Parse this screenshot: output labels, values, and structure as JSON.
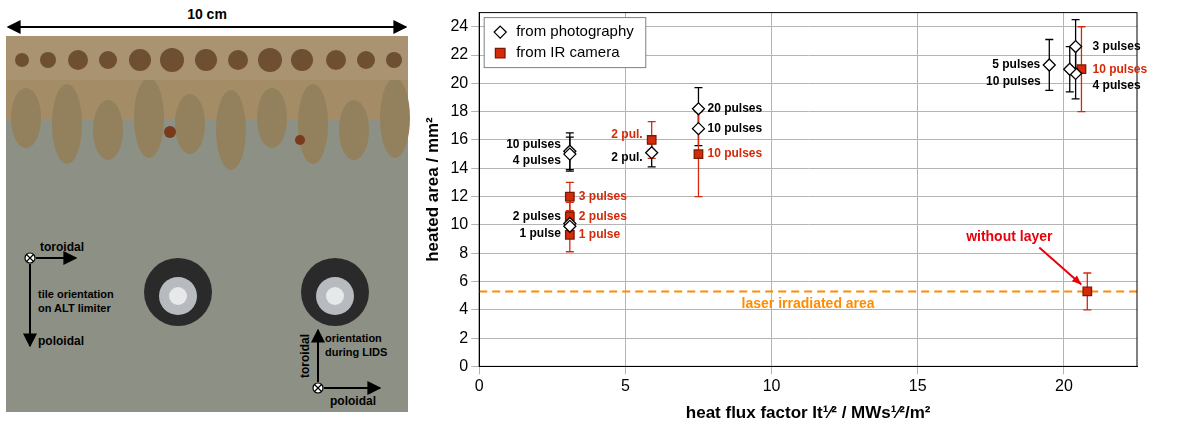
{
  "photo": {
    "scale_bar": "10 cm",
    "tile_axes": {
      "label": "tile orientation on ALT limiter",
      "horizontal": "toroidal",
      "vertical": "poloidal"
    },
    "lids_axes": {
      "label": "orientation during LIDS",
      "vertical": "toroidal",
      "horizontal": "poloidal"
    }
  },
  "chart_data": {
    "type": "scatter",
    "xlabel": "heat flux factor It¹⁄² / MWs¹⁄²/m²",
    "ylabel": "heated area / mm²",
    "xlim": [
      0,
      22.5
    ],
    "xticks": [
      0,
      5,
      10,
      15,
      20
    ],
    "ylim": [
      0,
      25
    ],
    "yticks": [
      0,
      2,
      4,
      6,
      8,
      10,
      12,
      14,
      16,
      18,
      20,
      22,
      24
    ],
    "grid": true,
    "legend": "upper left",
    "series": [
      {
        "name": "from photography",
        "color": "#000000",
        "marker": "open_diamond",
        "x": [
          3.1,
          3.1,
          3.1,
          3.1,
          5.9,
          7.5,
          7.5,
          19.5,
          20.4,
          20.4,
          20.2
        ],
        "values": [
          15.2,
          15.0,
          10.1,
          9.9,
          15.1,
          18.2,
          16.8,
          21.3,
          22.6,
          20.7,
          21.0
        ],
        "errors": [
          1.3,
          1.2,
          0.8,
          0.8,
          1.0,
          1.5,
          1.2,
          1.8,
          1.9,
          1.8,
          1.6
        ],
        "point_labels": [
          "10 pulses",
          "4 pulses",
          "2 pulses",
          "1 pulse",
          "2 pul.",
          "20 pulses",
          "10 pulses",
          "5 pulses",
          "3 pulses",
          "4 pulses",
          "10 pulses"
        ]
      },
      {
        "name": "from IR camera",
        "color": "#d42a0a",
        "marker": "square",
        "x": [
          3.1,
          3.1,
          3.1,
          5.9,
          7.5,
          20.6,
          20.8
        ],
        "values": [
          12.0,
          10.6,
          9.3,
          16.0,
          15.0,
          21.0,
          5.3
        ],
        "errors": [
          1.0,
          1.0,
          1.2,
          1.3,
          3.0,
          3.0,
          1.3
        ],
        "point_labels": [
          "3 pulses",
          "2 pulses",
          "1 pulse",
          "2 pul.",
          "10 pulses",
          "10 pulses",
          null
        ]
      }
    ],
    "hlines": [
      {
        "y": 5.3,
        "label": "laser irradiated area",
        "color": "#ff8c00",
        "line_style": "dashed"
      }
    ],
    "annotations": [
      {
        "text": "without layer",
        "x": 20.8,
        "y": 5.3,
        "color": "#e8000b"
      }
    ]
  }
}
